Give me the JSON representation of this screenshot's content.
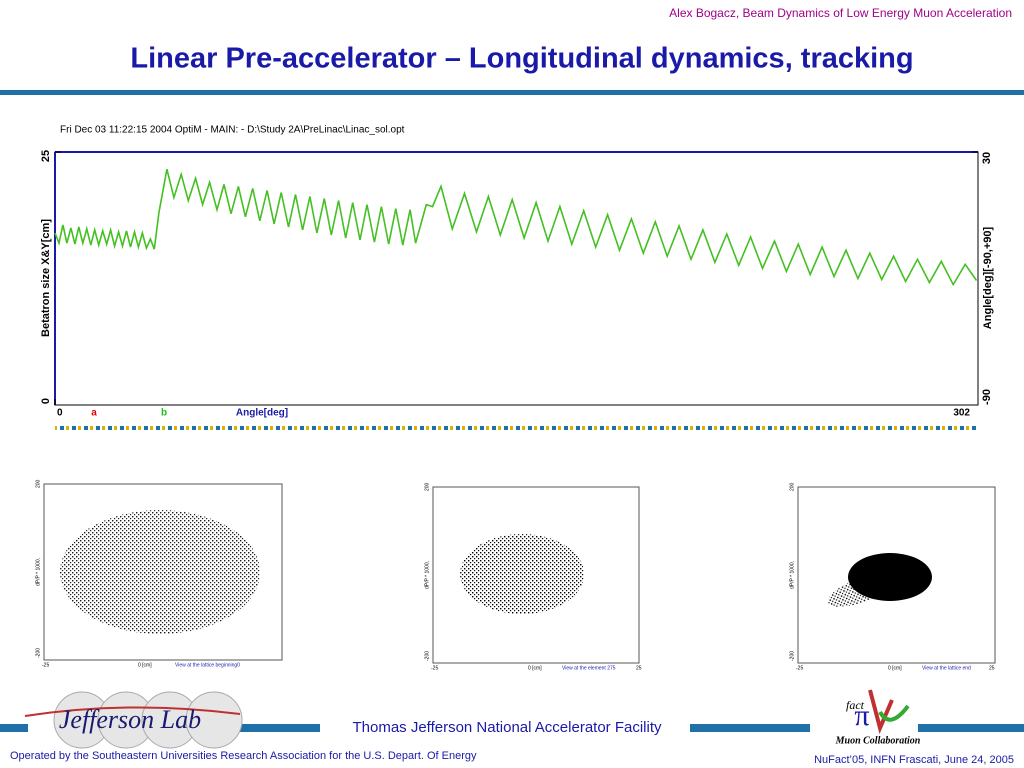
{
  "header": {
    "author_line": "Alex Bogacz, Beam Dynamics of Low Energy Muon Acceleration",
    "title": "Linear Pre-accelerator – Longitudinal dynamics, tracking"
  },
  "chart_data": {
    "type": "line",
    "title": "Fri Dec 03 11:22:15 2004    OptiM - MAIN: - D:\\Study 2A\\PreLinac\\Linac_sol.opt",
    "ylabel": "Betatron size X&Y[cm]",
    "y2label": "Angle[deg][-90,+90]",
    "xlabel": "Angle[deg]",
    "annotations": [
      {
        "text": "a",
        "color": "#e00000"
      },
      {
        "text": "b",
        "color": "#22bb22"
      }
    ],
    "xlim": [
      0,
      302
    ],
    "xticks": [
      0,
      302
    ],
    "ylim": [
      0,
      25
    ],
    "yticks": [
      0,
      25
    ],
    "y2lim": [
      -90,
      30
    ],
    "y2ticks": [
      -90,
      30
    ],
    "x": [
      0,
      1.3,
      2.6,
      3.9,
      5.2,
      6.5,
      7.8,
      9.1,
      10.4,
      11.7,
      13.0,
      14.3,
      15.6,
      16.9,
      18.2,
      19.5,
      20.8,
      22.1,
      23.4,
      24.7,
      26.0,
      27.3,
      28.6,
      29.9,
      31.2,
      32.5,
      34.0,
      36.6,
      38.9,
      41.3,
      43.6,
      46.0,
      48.3,
      50.6,
      53.0,
      55.3,
      57.6,
      60.0,
      62.3,
      64.7,
      67.0,
      69.4,
      71.7,
      74.0,
      76.4,
      78.7,
      81.0,
      83.4,
      85.7,
      88.1,
      90.4,
      92.8,
      95.1,
      97.4,
      99.8,
      102.1,
      104.5,
      106.8,
      109.2,
      111.5,
      113.8,
      116.2,
      118.0,
      121.5,
      123.5,
      126.3,
      130.0,
      134.0,
      137.9,
      141.8,
      145.7,
      149.6,
      153.5,
      157.4,
      161.3,
      165.2,
      169.1,
      173.0,
      176.9,
      180.8,
      184.7,
      188.6,
      192.5,
      196.4,
      200.3,
      204.2,
      208.1,
      212.0,
      215.9,
      219.8,
      223.7,
      227.6,
      231.5,
      235.4,
      239.3,
      243.2,
      247.1,
      251.0,
      254.9,
      258.8,
      262.7,
      266.6,
      270.5,
      274.4,
      278.3,
      282.2,
      286.1,
      290.0,
      293.9,
      297.8,
      301.5
    ],
    "series": [
      {
        "name": "Betatron size",
        "color": "#44c022",
        "values": [
          17.0,
          16.0,
          17.8,
          16.0,
          17.5,
          15.9,
          17.6,
          16.0,
          17.4,
          15.8,
          17.3,
          15.8,
          17.2,
          15.9,
          17.3,
          15.7,
          17.1,
          15.7,
          17.2,
          15.6,
          17.1,
          15.6,
          17.0,
          15.5,
          16.4,
          15.4,
          19.0,
          23.3,
          20.5,
          22.8,
          20.2,
          22.4,
          19.8,
          22.0,
          19.3,
          21.8,
          18.9,
          21.6,
          18.6,
          21.4,
          18.2,
          21.2,
          17.9,
          21.0,
          17.6,
          20.8,
          17.3,
          20.6,
          17.0,
          20.4,
          16.8,
          20.2,
          16.5,
          20.0,
          16.3,
          19.8,
          16.1,
          19.6,
          15.9,
          19.4,
          15.8,
          19.3,
          16.0,
          19.8,
          19.6,
          21.6,
          17.4,
          20.9,
          17.1,
          20.6,
          16.8,
          20.3,
          16.5,
          20.0,
          16.2,
          19.6,
          15.9,
          19.2,
          15.6,
          18.8,
          15.3,
          18.4,
          15.0,
          18.1,
          14.7,
          17.7,
          14.4,
          17.3,
          14.1,
          16.9,
          13.8,
          16.6,
          13.5,
          16.2,
          13.2,
          15.9,
          12.9,
          15.6,
          12.7,
          15.3,
          12.5,
          15.0,
          12.4,
          14.7,
          12.2,
          14.4,
          12.1,
          14.2,
          11.9,
          13.9,
          12.3
        ]
      }
    ]
  },
  "phase_plots": [
    {
      "ylabel": "dP/P * 1000,",
      "y_top": "200",
      "y_bottom": "-200",
      "x_left": "-25",
      "x_mid": "0 [cm]",
      "caption": "View at the lattice beginning0"
    },
    {
      "ylabel": "dP/P * 1000,",
      "y_top": "200",
      "y_bottom": "-200",
      "x_left": "-25",
      "x_mid": "0 [cm]",
      "caption": "View at the element 275",
      "x_right": "25"
    },
    {
      "ylabel": "dP/P * 1000,",
      "y_top": "200",
      "y_bottom": "-200",
      "x_left": "-25",
      "x_mid": "0 [cm]",
      "caption": "View at the lattice end",
      "x_right": "25"
    }
  ],
  "footer": {
    "lab_logo": "Jefferson Lab",
    "facility": "Thomas Jefferson National Accelerator Facility",
    "operated_by": "Operated by the Southeastern Universities Research Association for the U.S. Depart. Of Energy",
    "event": "NuFact’05, INFN Frascati, June 24, 2005",
    "logo_fact": "fact",
    "logo_collab": "Muon Collaboration"
  }
}
